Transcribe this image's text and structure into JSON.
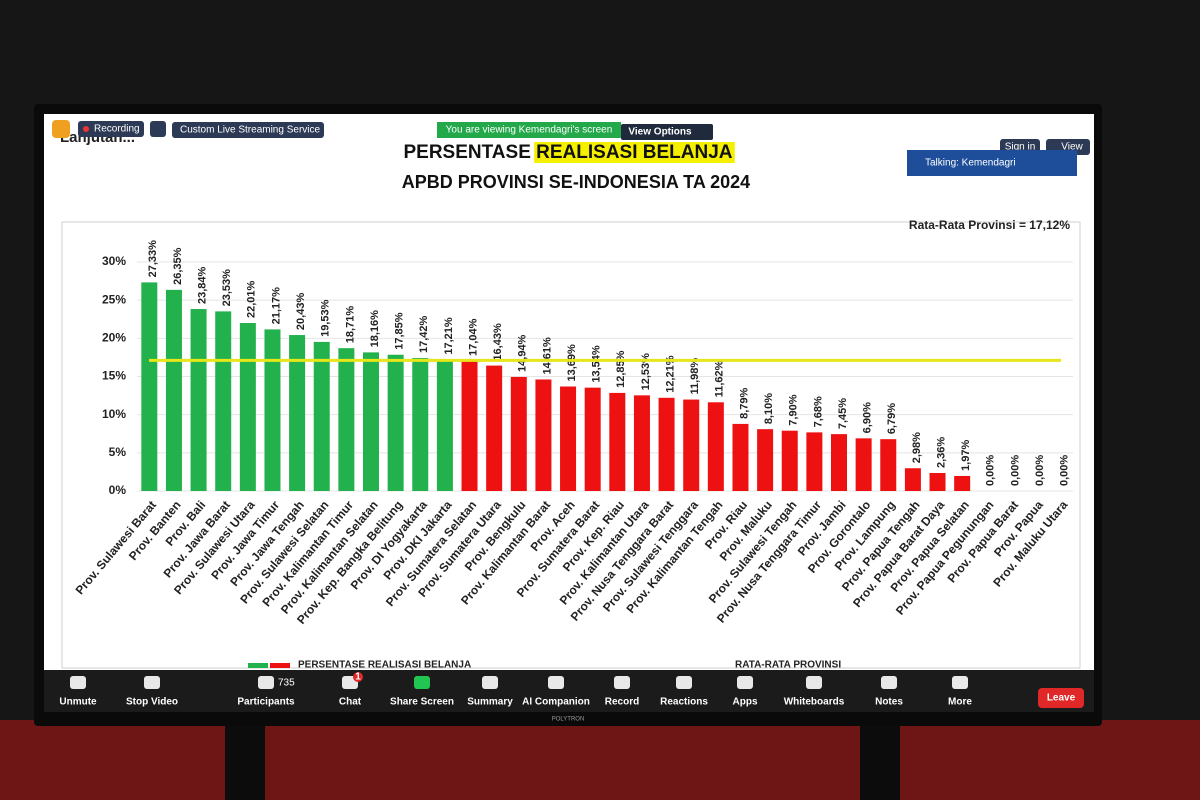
{
  "zoom": {
    "slide_heading": "Lanjutan...",
    "recording": "Recording",
    "streaming": "Custom Live Streaming Service",
    "viewing_banner": "You are viewing Kemendagri's screen",
    "view_options": "View Options",
    "sign_in": "Sign in",
    "view": "View",
    "talking": "Talking: Kemendagri",
    "participants_count": 735,
    "chat_badge": 1,
    "toolbar": [
      "Unmute",
      "Stop Video",
      "Participants",
      "Chat",
      "Share Screen",
      "Summary",
      "AI Companion",
      "Record",
      "Reactions",
      "Apps",
      "Whiteboards",
      "Notes",
      "More"
    ],
    "leave": "Leave",
    "monitor_brand": "POLYTRON"
  },
  "chart_data": {
    "type": "bar",
    "title": "PERSENTASE",
    "title_highlight": "REALISASI BELANJA",
    "subtitle": "APBD PROVINSI SE-INDONESIA TA 2024",
    "categories": [
      "Prov. Sulawesi Barat",
      "Prov. Banten",
      "Prov. Bali",
      "Prov. Jawa Barat",
      "Prov. Sulawesi Utara",
      "Prov. Jawa Timur",
      "Prov. Jawa Tengah",
      "Prov. Sulawesi Selatan",
      "Prov. Kalimantan Timur",
      "Prov. Kalimantan Selatan",
      "Prov. Kep. Bangka Belitung",
      "Prov. DI Yogyakarta",
      "Prov. DKI Jakarta",
      "Prov. Sumatera Selatan",
      "Prov. Sumatera Utara",
      "Prov. Bengkulu",
      "Prov. Kalimantan Barat",
      "Prov. Aceh",
      "Prov. Sumatera Barat",
      "Prov. Kep. Riau",
      "Prov. Kalimantan Utara",
      "Prov. Nusa Tenggara Barat",
      "Prov. Sulawesi Tenggara",
      "Prov. Kalimantan Tengah",
      "Prov. Riau",
      "Prov. Maluku",
      "Prov. Sulawesi Tengah",
      "Prov. Nusa Tenggara Timur",
      "Prov. Jambi",
      "Prov. Gorontalo",
      "Prov. Lampung",
      "Prov. Papua Tengah",
      "Prov. Papua Barat Daya",
      "Prov. Papua Selatan",
      "Prov. Papua Pegunungan",
      "Prov. Papua Barat",
      "Prov. Papua",
      "Prov. Maluku Utara"
    ],
    "values": [
      27.33,
      26.35,
      23.84,
      23.53,
      22.01,
      21.17,
      20.43,
      19.53,
      18.71,
      18.16,
      17.85,
      17.42,
      17.21,
      17.04,
      16.43,
      14.94,
      14.61,
      13.69,
      13.54,
      12.85,
      12.53,
      12.21,
      11.98,
      11.62,
      8.79,
      8.1,
      7.9,
      7.68,
      7.45,
      6.9,
      6.79,
      2.98,
      2.36,
      1.97,
      0,
      0,
      0,
      0
    ],
    "value_labels": [
      "27,33%",
      "26,35%",
      "23,84%",
      "23,53%",
      "22,01%",
      "21,17%",
      "20,43%",
      "19,53%",
      "18,71%",
      "18,16%",
      "17,85%",
      "17,42%",
      "17,21%",
      "17,04%",
      "16,43%",
      "14,94%",
      "14,61%",
      "13,69%",
      "13,54%",
      "12,85%",
      "12,53%",
      "12,21%",
      "11,98%",
      "11,62%",
      "8,79%",
      "8,10%",
      "7,90%",
      "7,68%",
      "7,45%",
      "6,90%",
      "6,79%",
      "2,98%",
      "2,36%",
      "1,97%",
      "0,00%",
      "0,00%",
      "0,00%",
      "0,00%"
    ],
    "above_color": "#22b14c",
    "below_color": "#ee1111",
    "reference_line": {
      "label": "Rata-Rata Provinsi = 17,12%",
      "value": 17.12,
      "color": "#e6e61a"
    },
    "legend": [
      "PERSENTASE REALISASI BELANJA",
      "RATA-RATA PROVINSI"
    ],
    "ylim": [
      0,
      30
    ],
    "yticks": [
      {
        "value": 0,
        "label": "0%"
      },
      {
        "value": 5,
        "label": "5%"
      },
      {
        "value": 10,
        "label": "10%"
      },
      {
        "value": 15,
        "label": "15%"
      },
      {
        "value": 20,
        "label": "20%"
      },
      {
        "value": 25,
        "label": "25%"
      },
      {
        "value": 30,
        "label": "30%"
      }
    ],
    "grid": true
  }
}
